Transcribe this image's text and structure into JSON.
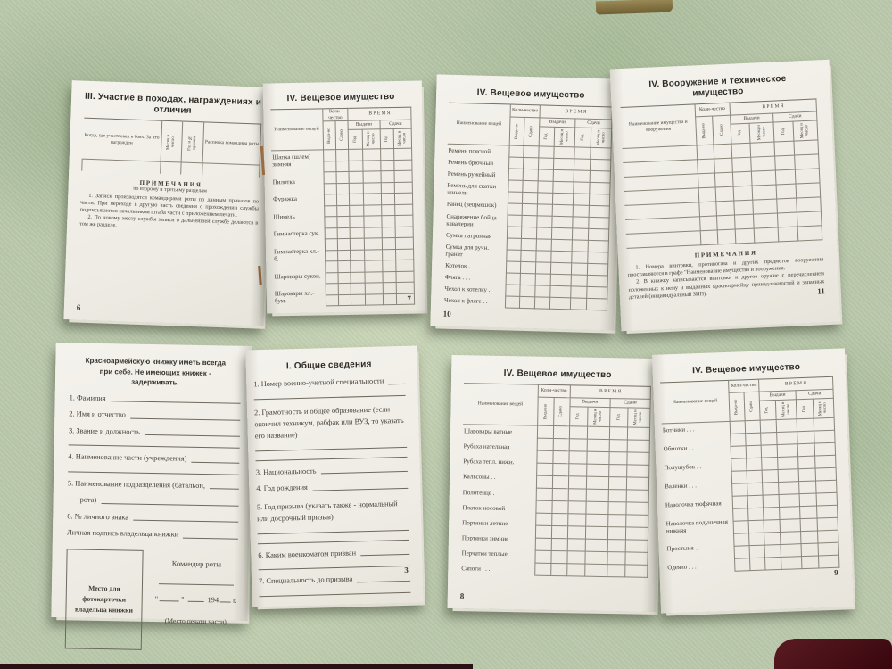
{
  "scene": {
    "fabric_color": "#b8c6a9",
    "page_color": "#f0eee7",
    "ink_color": "#45403a",
    "bottom_strip_color": "#2b1016",
    "corner_object_color": "#4e161c",
    "top_object_color": "#8a7b4d"
  },
  "shared": {
    "inv_title": "IV. Вещевое имущество",
    "name_col": "Наименование вещей",
    "qty": "Коли-чество",
    "issued": "Выда-но",
    "returned": "Сдано",
    "time": "В Р Е М Я",
    "time_issue": "Выдачи",
    "time_return": "Сдачи",
    "year": "Год",
    "month_day": "Месяц и число",
    "notes_title": "П Р И М Е Ч А Н И Я"
  },
  "page6": {
    "title": "III. Участие в походах, награждениях и отличия",
    "col_when": "Когда, где участвовал в боях. За что награжден",
    "col_month": "Месяц и число",
    "col_year": "Год и № приказа",
    "col_sign": "Расписка командира роты",
    "notes_sub": "по второму и третьему разделам",
    "note1": "1. Записи производятся командирами роты по данным приказов по части. При переходе в другую часть сведения о прохождении службы подписываются начальником штаба части с приложением печати.",
    "note2": "2. По новому месту службы записи о дальнейшей службе делаются в том же разделе.",
    "page_number": "6"
  },
  "page7": {
    "rows": [
      "Шапка (шлем) зимняя",
      "Пилотка",
      "Фуражка",
      "Шинель",
      "Гимнастерка сук.",
      "Гимнастерка хл.-б.",
      "Шаровары сукон.",
      "Шаровары хл.-бум."
    ],
    "page_number": "7"
  },
  "page10": {
    "rows": [
      "Ремень поясной",
      "Ремень брючный",
      "Ремень ружейный",
      "Ремень для скатки шинели",
      "Ранец (вещмешок)",
      "Снаряжение бойца кавалерии",
      "Сумка патронная",
      "Сумка для ручн. гранат",
      "Котелок .",
      "Фляга . . .",
      "Чехол к котелку .",
      "Чехол к фляге . ."
    ],
    "page_number": "10"
  },
  "page11": {
    "title": "IV. Вооружение и техническое имущество",
    "name_col": "Наименование имущества и вооружения",
    "note1": "1. Номера винтовки, противогаза и других предметов вооружения проставляются в графе \"Наименование имущества и вооружения.",
    "note2": "2. В книжку записываются винтовки и другое оружие с перечислением положенных к нему и выданных красноармейцу принадлежностей и запасных деталей (индивидуальный ЗИП).",
    "page_number": "11"
  },
  "page2": {
    "notice": "Красноармейскую книжку иметь всегда при себе. Не имеющих книжек - задерживать.",
    "f1": "1. Фамилия",
    "f2": "2. Имя и отчество",
    "f3": "3. Звание и должность",
    "f4": "4. Наименование части (учреждения)",
    "f5a": "5. Наименование подразделения (батальон,",
    "f5b": "рота)",
    "f6": "6. № личного знака",
    "f7": "Личная подпись владельца книжки",
    "photo_box": "Место для фотокарточки владельца книжки",
    "commander": "Командир роты",
    "quote": "\"",
    "year_prefix": "194",
    "year_suffix": "г.",
    "stamp": "(Место печати части)"
  },
  "page3": {
    "title": "I. Общие сведения",
    "f1": "1. Номер военно-учетной специальности",
    "f2": "2. Грамотность и общее образование (если окончил техникум, рабфак или ВУЗ, то указать его название)",
    "f3": "3. Национальность",
    "f4": "4. Год рождения",
    "f5": "5. Год призыва (указать также - нормальный или досрочный призыв)",
    "f6": "6. Каким военкоматом призван",
    "f7": "7. Специальность до призыва",
    "page_number": "3"
  },
  "page8": {
    "rows": [
      "Шаровары ватные",
      "Рубаха нательная",
      "Рубаха тепл. нижн.",
      "Кальсоны . .",
      "Полотенце .",
      "Платок носовой",
      "Портянки летние",
      "Портянки зимние",
      "Перчатки теплые",
      "Сапоги . . ."
    ],
    "page_number": "8"
  },
  "page9": {
    "rows": [
      "Ботинки . . .",
      "Обмотки . .",
      "Полушубок . .",
      "Валенки . . .",
      "Наволочка тюфячная",
      "Наволочка подушечная нижняя",
      "Простыня . .",
      "Одеяло . . ."
    ],
    "page_number": "9"
  }
}
